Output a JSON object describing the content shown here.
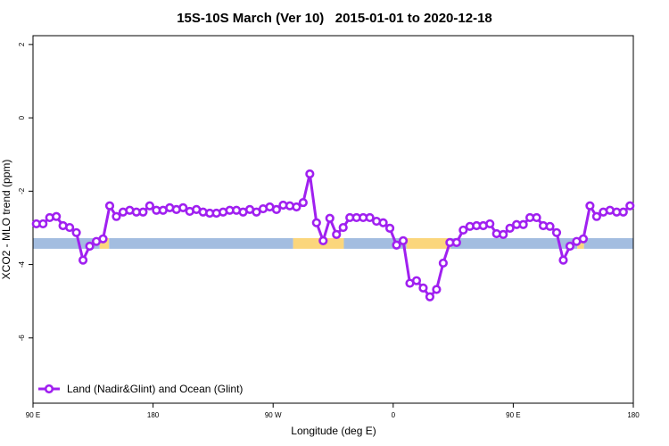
{
  "chart_data": {
    "type": "line",
    "title": "15S-10S March (Ver 10)   2015-01-01 to 2020-12-18",
    "x_label": "Longitude (deg E)",
    "y_label": "XCO2 - MLO trend (ppm)",
    "xlim": [
      90,
      540
    ],
    "ylim": [
      -7.78,
      2.24
    ],
    "xticks": [
      {
        "value": 90,
        "label": "90 E"
      },
      180,
      {
        "value": 270,
        "label": "90 W"
      },
      {
        "value": 360,
        "label": "0"
      },
      {
        "value": 450,
        "label": "90 E"
      },
      {
        "value": 540,
        "label": "180"
      }
    ],
    "yticks": [
      2,
      0,
      -2,
      -4,
      -6
    ],
    "legend_position": "bottom-left",
    "surface_band": {
      "ylim": [
        -3.57,
        -3.28
      ],
      "segments": [
        {
          "from": 90,
          "to": 140,
          "color": "#a3bde0"
        },
        {
          "from": 140,
          "to": 147,
          "color": "#fbd67c"
        },
        {
          "from": 147,
          "to": 285,
          "color": "#a3bde0"
        },
        {
          "from": 285,
          "to": 323,
          "color": "#fbd67c"
        },
        {
          "from": 323,
          "to": 370,
          "color": "#a3bde0"
        },
        {
          "from": 370,
          "to": 403,
          "color": "#fbd67c"
        },
        {
          "from": 403,
          "to": 498,
          "color": "#a3bde0"
        },
        {
          "from": 498,
          "to": 503,
          "color": "#fbd67c"
        },
        {
          "from": 503,
          "to": 540,
          "color": "#a3bde0"
        }
      ]
    },
    "x": [
      92.5,
      97.5,
      102.5,
      107.5,
      112.5,
      117.5,
      122.5,
      127.5,
      132.5,
      137.5,
      142.5,
      147.5,
      152.5,
      157.5,
      162.5,
      167.5,
      172.5,
      177.5,
      182.5,
      187.5,
      192.5,
      197.5,
      202.5,
      207.5,
      212.5,
      217.5,
      222.5,
      227.5,
      232.5,
      237.5,
      242.5,
      247.5,
      252.5,
      257.5,
      262.5,
      267.5,
      272.5,
      277.5,
      282.5,
      287.5,
      292.5,
      297.5,
      302.5,
      307.5,
      312.5,
      317.5,
      322.5,
      327.5,
      332.5,
      337.5,
      342.5,
      347.5,
      352.5,
      357.5,
      362.5,
      367.5,
      372.5,
      377.5,
      382.5,
      387.5,
      392.5,
      397.5,
      402.5,
      407.5,
      412.5,
      417.5,
      422.5,
      427.5,
      432.5,
      437.5,
      442.5,
      447.5,
      452.5,
      457.5,
      462.5,
      467.5,
      472.5,
      477.5,
      482.5,
      487.5,
      492.5,
      497.5,
      502.5,
      507.5,
      512.5,
      517.5,
      522.5,
      527.5,
      532.5,
      537.5
    ],
    "series": [
      {
        "name": "Land (Nadir&Glint) and Ocean (Glint)",
        "color": "#a020f0",
        "values": [
          -2.89,
          -2.89,
          -2.72,
          -2.69,
          -2.94,
          -2.99,
          -3.13,
          -3.88,
          -3.5,
          -3.37,
          -3.3,
          -2.4,
          -2.69,
          -2.57,
          -2.52,
          -2.57,
          -2.57,
          -2.4,
          -2.52,
          -2.52,
          -2.45,
          -2.5,
          -2.45,
          -2.55,
          -2.5,
          -2.57,
          -2.6,
          -2.6,
          -2.57,
          -2.52,
          -2.52,
          -2.57,
          -2.5,
          -2.57,
          -2.48,
          -2.43,
          -2.5,
          -2.38,
          -2.4,
          -2.43,
          -2.31,
          -1.53,
          -2.86,
          -3.35,
          -2.74,
          -3.18,
          -2.99,
          -2.72,
          -2.72,
          -2.72,
          -2.72,
          -2.82,
          -2.86,
          -3.01,
          -3.47,
          -3.35,
          -4.51,
          -4.44,
          -4.64,
          -4.88,
          -4.68,
          -3.96,
          -3.4,
          -3.4,
          -3.06,
          -2.96,
          -2.94,
          -2.94,
          -2.89,
          -3.16,
          -3.18,
          -3.01,
          -2.91,
          -2.91,
          -2.72,
          -2.72,
          -2.94,
          -2.96,
          -3.13,
          -3.88,
          -3.5,
          -3.37,
          -3.3,
          -2.4,
          -2.69,
          -2.57,
          -2.52,
          -2.57,
          -2.57,
          -2.4
        ]
      }
    ]
  }
}
